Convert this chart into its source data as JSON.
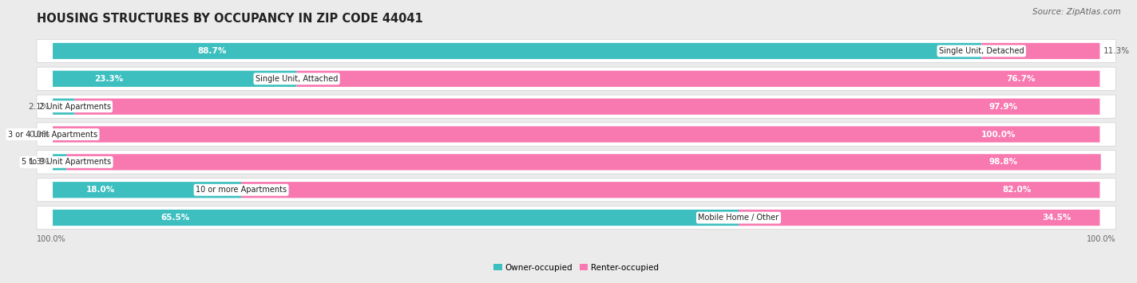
{
  "title": "HOUSING STRUCTURES BY OCCUPANCY IN ZIP CODE 44041",
  "source": "Source: ZipAtlas.com",
  "categories": [
    "Single Unit, Detached",
    "Single Unit, Attached",
    "2 Unit Apartments",
    "3 or 4 Unit Apartments",
    "5 to 9 Unit Apartments",
    "10 or more Apartments",
    "Mobile Home / Other"
  ],
  "owner_pct": [
    88.7,
    23.3,
    2.1,
    0.0,
    1.3,
    18.0,
    65.5
  ],
  "renter_pct": [
    11.3,
    76.7,
    97.9,
    100.0,
    98.8,
    82.0,
    34.5
  ],
  "owner_color": "#3DBFBF",
  "renter_color": "#F878B0",
  "background_color": "#ebebeb",
  "row_bg_color": "#ffffff",
  "title_fontsize": 10.5,
  "source_fontsize": 7.5,
  "bar_label_fontsize": 7.5,
  "category_fontsize": 7.0,
  "legend_fontsize": 7.5,
  "axis_label_fontsize": 7.0
}
